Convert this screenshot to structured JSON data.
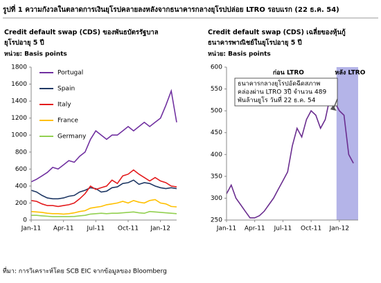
{
  "title": "รูปที่ 1 ความกังวลในตลาดการเงินยุโรปคลายลงหลังจากธนาคารกลางยุโรปปล่อย LTRO รอบแรก (22 ธ.ค. 54)",
  "source": "ที่มา: การวิเคราะห์โดย SCB EIC จากข้อมูลของ Bloomberg",
  "chart_data": [
    {
      "type": "line",
      "title": [
        "Credit default swap (CDS) ของพันธบัตรรัฐบาล",
        "ยุโรปอายุ 5 ปี"
      ],
      "unit": "หน่วย: Basis points",
      "x": [
        0,
        0.5,
        1,
        1.5,
        2,
        2.5,
        3,
        3.5,
        4,
        4.5,
        5,
        5.5,
        6,
        6.5,
        7,
        7.5,
        8,
        8.5,
        9,
        9.5,
        10,
        10.5,
        11,
        11.5,
        12,
        12.5,
        13,
        13.5
      ],
      "xlim": [
        0,
        13.5
      ],
      "xticks": [
        {
          "value": 0,
          "label": "Jan-11"
        },
        {
          "value": 3,
          "label": "Apr-11"
        },
        {
          "value": 6,
          "label": "Jul-11"
        },
        {
          "value": 9,
          "label": "Oct-11"
        },
        {
          "value": 12,
          "label": "Jan-12"
        }
      ],
      "ylim": [
        0,
        1800
      ],
      "yticks": [
        0,
        200,
        400,
        600,
        800,
        1000,
        1200,
        1400,
        1600,
        1800
      ],
      "legend": "upper left",
      "series": [
        {
          "name": "Portugal",
          "color": "#7030a0",
          "values": [
            450,
            480,
            520,
            560,
            620,
            600,
            650,
            700,
            680,
            750,
            800,
            950,
            1050,
            1000,
            950,
            1000,
            1000,
            1050,
            1100,
            1050,
            1100,
            1150,
            1100,
            1150,
            1200,
            1350,
            1520,
            1150
          ]
        },
        {
          "name": "Spain",
          "color": "#1f3864",
          "values": [
            350,
            330,
            290,
            260,
            250,
            250,
            260,
            280,
            290,
            330,
            350,
            380,
            370,
            330,
            340,
            380,
            390,
            430,
            440,
            470,
            420,
            440,
            430,
            400,
            380,
            370,
            380,
            370
          ]
        },
        {
          "name": "Italy",
          "color": "#e31a1c",
          "values": [
            230,
            220,
            190,
            170,
            170,
            160,
            170,
            180,
            200,
            250,
            310,
            400,
            360,
            380,
            400,
            470,
            430,
            520,
            540,
            590,
            540,
            500,
            460,
            500,
            460,
            440,
            400,
            390
          ]
        },
        {
          "name": "France",
          "color": "#ffc000",
          "values": [
            100,
            95,
            90,
            80,
            75,
            75,
            70,
            75,
            85,
            100,
            110,
            140,
            150,
            160,
            180,
            190,
            200,
            220,
            200,
            230,
            210,
            200,
            230,
            240,
            200,
            190,
            160,
            155
          ]
        },
        {
          "name": "Germany",
          "color": "#92d050",
          "values": [
            55,
            55,
            50,
            45,
            40,
            40,
            40,
            40,
            42,
            50,
            55,
            70,
            75,
            80,
            75,
            80,
            80,
            85,
            90,
            95,
            85,
            80,
            100,
            95,
            90,
            85,
            80,
            75
          ]
        }
      ]
    },
    {
      "type": "line",
      "title": [
        "Credit default swap (CDS) เฉลี่ยของหุ้นกู้",
        "ธนาคารพาณิชย์ในยุโรปอายุ 5 ปี"
      ],
      "unit": "หน่วย: Basis points",
      "x": [
        0,
        0.5,
        1,
        1.5,
        2,
        2.5,
        3,
        3.5,
        4,
        4.5,
        5,
        5.5,
        6,
        6.5,
        7,
        7.5,
        8,
        8.5,
        9,
        9.5,
        10,
        10.5,
        11,
        11.5,
        12,
        12.5,
        13,
        13.5
      ],
      "xlim": [
        0,
        14
      ],
      "xticks": [
        {
          "value": 0,
          "label": "Jan-11"
        },
        {
          "value": 3,
          "label": "Apr-11"
        },
        {
          "value": 6,
          "label": "Jul-11"
        },
        {
          "value": 9,
          "label": "Oct-11"
        },
        {
          "value": 12,
          "label": "Jan-12"
        }
      ],
      "ylim": [
        250,
        600
      ],
      "yticks": [
        250,
        300,
        350,
        400,
        450,
        500,
        550,
        600
      ],
      "shaded_x": [
        11.7,
        14
      ],
      "shade_color": "#b4b4e8",
      "series": [
        {
          "color": "#6a2d8f",
          "values": [
            310,
            330,
            300,
            285,
            270,
            255,
            255,
            260,
            270,
            285,
            300,
            320,
            340,
            360,
            420,
            460,
            440,
            480,
            500,
            490,
            460,
            480,
            530,
            520,
            500,
            490,
            400,
            380
          ]
        }
      ],
      "annotations": [
        "ก่อน LTRO",
        "หลัง LTRO"
      ],
      "note": [
        "ธนาคารกลางยุโรปอัดฉีดสภาพ",
        "คล่องผ่าน LTRO 3ปี จำนวน 489",
        "พันล้านยูโร วันที่ 22 ธ.ค. 54"
      ]
    }
  ]
}
